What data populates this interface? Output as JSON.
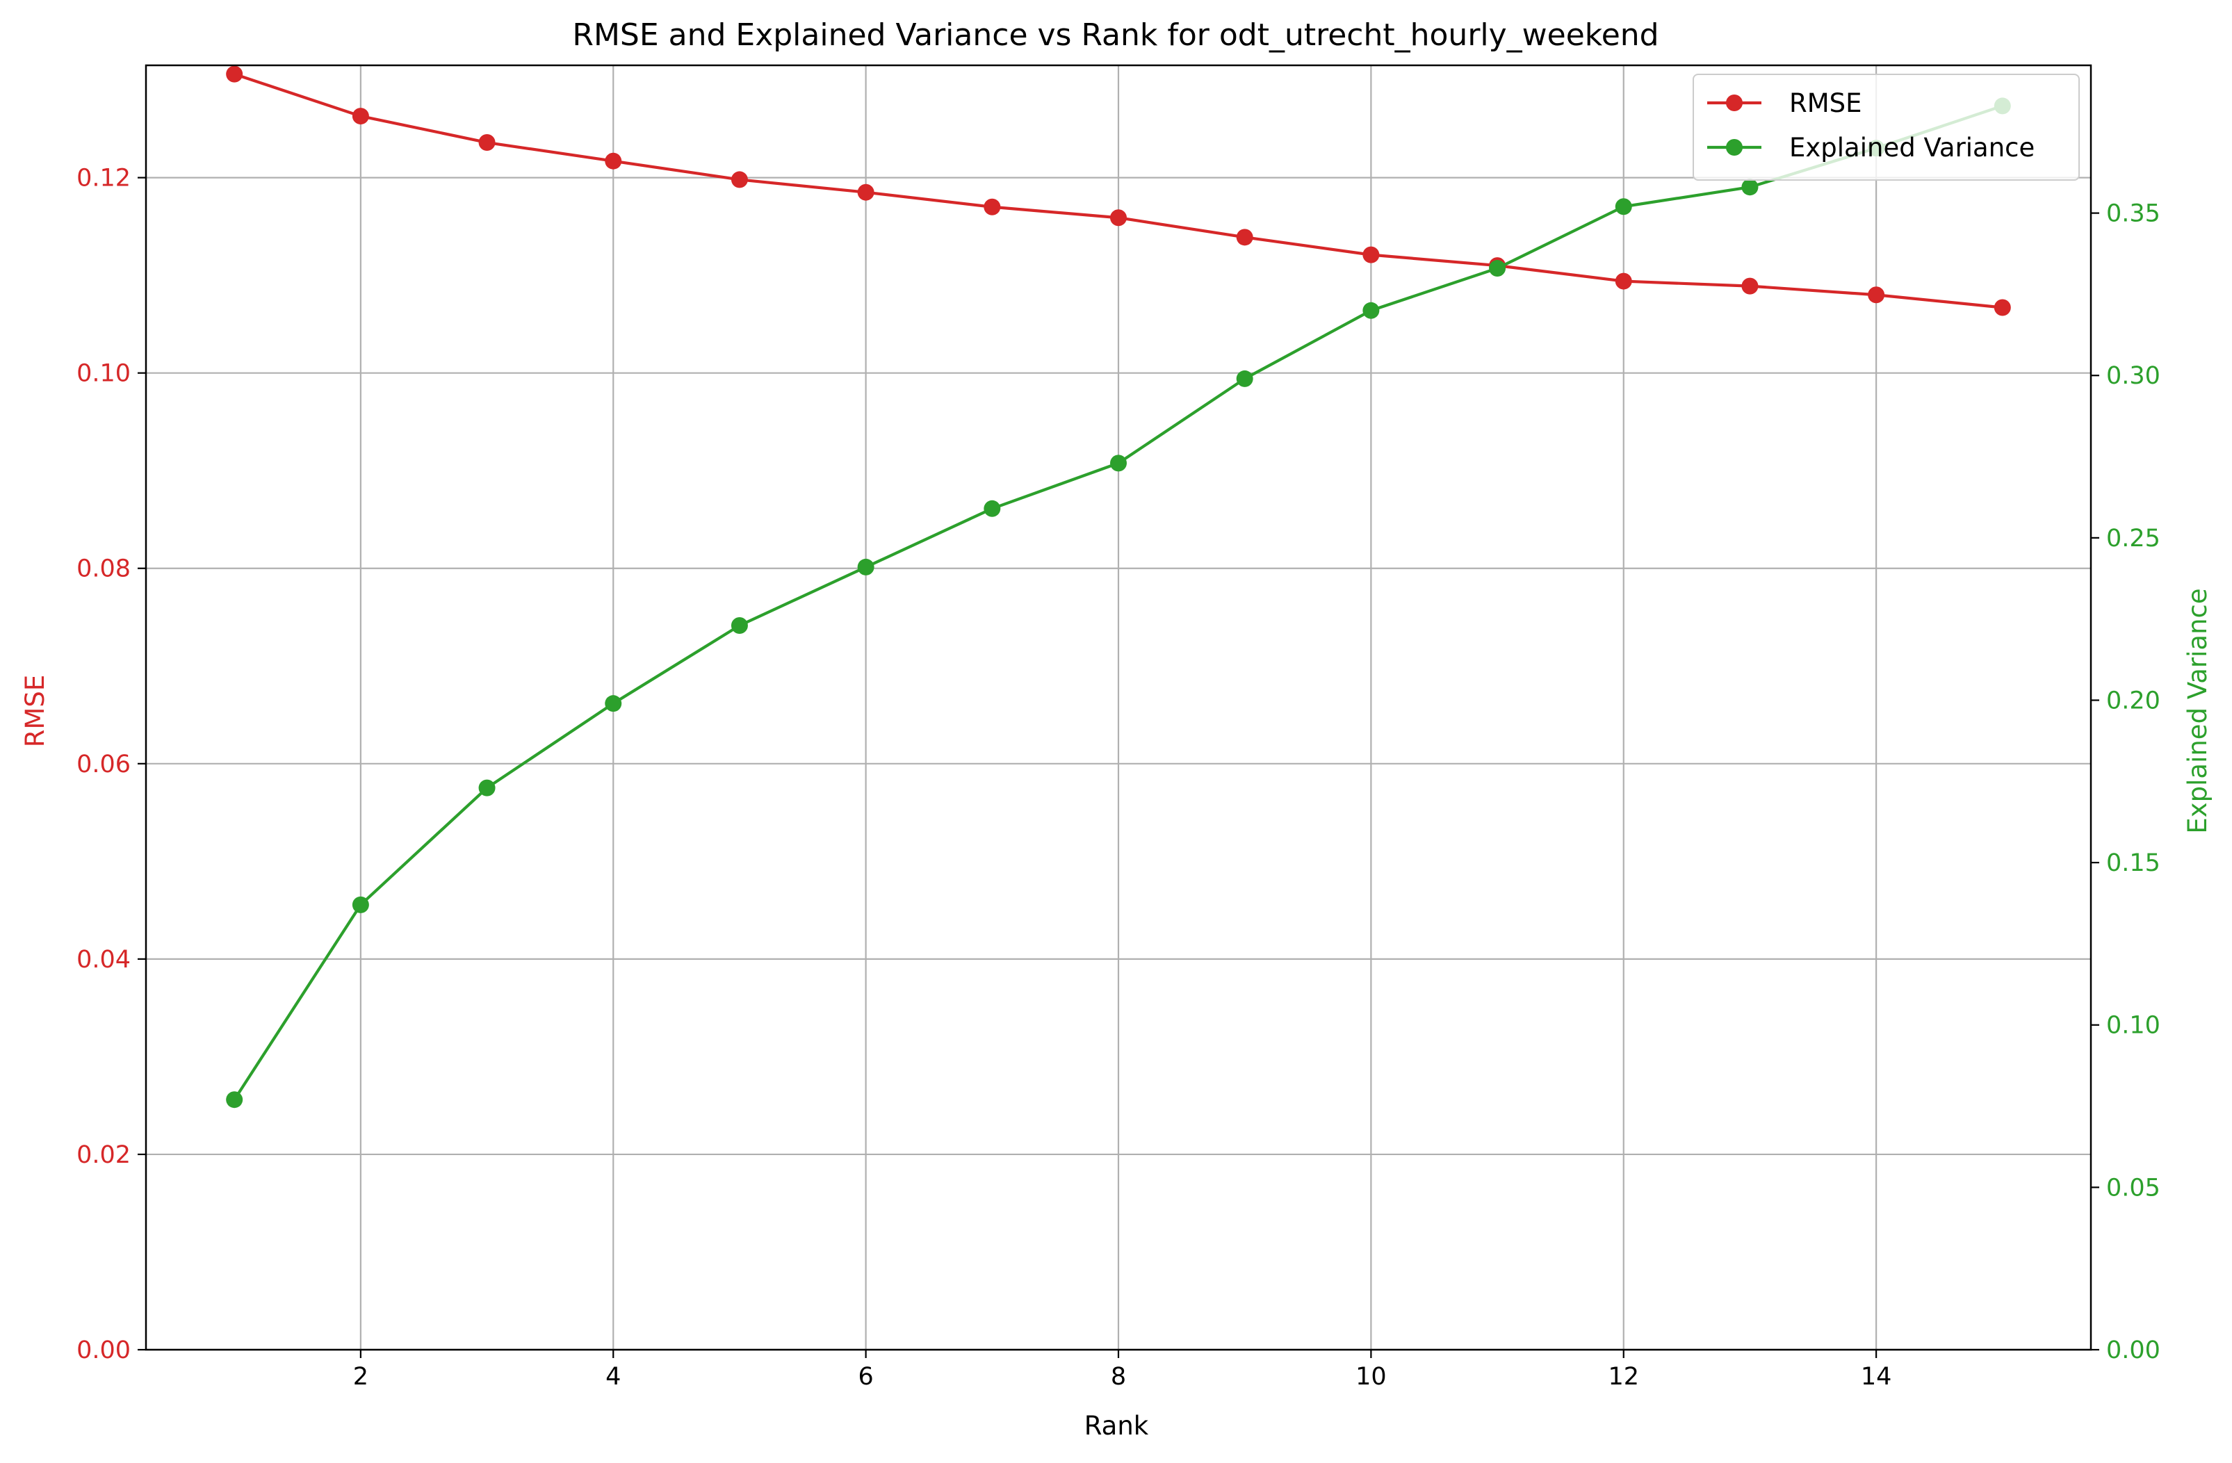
{
  "chart_data": {
    "type": "line",
    "title": "RMSE and Explained Variance vs Rank for odt_utrecht_hourly_weekend",
    "xlabel": "Rank",
    "ylabel_left": "RMSE",
    "ylabel_right": "Explained Variance",
    "x": [
      1,
      2,
      3,
      4,
      5,
      6,
      7,
      8,
      9,
      10,
      11,
      12,
      13,
      14,
      15
    ],
    "xlim": [
      0.3,
      15.7
    ],
    "x_ticks": [
      2,
      4,
      6,
      8,
      10,
      12,
      14
    ],
    "x_tick_labels": [
      "2",
      "4",
      "6",
      "8",
      "10",
      "12",
      "14"
    ],
    "ylim_left": [
      0,
      0.1315
    ],
    "y_left_ticks": [
      0,
      0.02,
      0.04,
      0.06,
      0.08,
      0.1,
      0.12
    ],
    "y_left_tick_labels": [
      "0.00",
      "0.02",
      "0.04",
      "0.06",
      "0.08",
      "0.10",
      "0.12"
    ],
    "ylim_right": [
      0,
      0.3955
    ],
    "y_right_ticks": [
      0,
      0.05,
      0.1,
      0.15,
      0.2,
      0.25,
      0.3,
      0.35
    ],
    "y_right_tick_labels": [
      "0.00",
      "0.05",
      "0.10",
      "0.15",
      "0.20",
      "0.25",
      "0.30",
      "0.35"
    ],
    "grid": true,
    "legend_position": "top-right",
    "series": [
      {
        "name": "RMSE",
        "axis": "left",
        "color": "#d62728",
        "values": [
          0.1306,
          0.1263,
          0.1236,
          0.1217,
          0.1198,
          0.1185,
          0.117,
          0.1159,
          0.1139,
          0.1121,
          0.111,
          0.1094,
          0.1089,
          0.108,
          0.1067
        ]
      },
      {
        "name": "Explained Variance",
        "axis": "right",
        "color": "#2ca02c",
        "values": [
          0.077,
          0.137,
          0.173,
          0.199,
          0.223,
          0.241,
          0.259,
          0.273,
          0.299,
          0.32,
          0.333,
          0.352,
          0.358,
          0.37,
          0.383
        ]
      }
    ]
  }
}
